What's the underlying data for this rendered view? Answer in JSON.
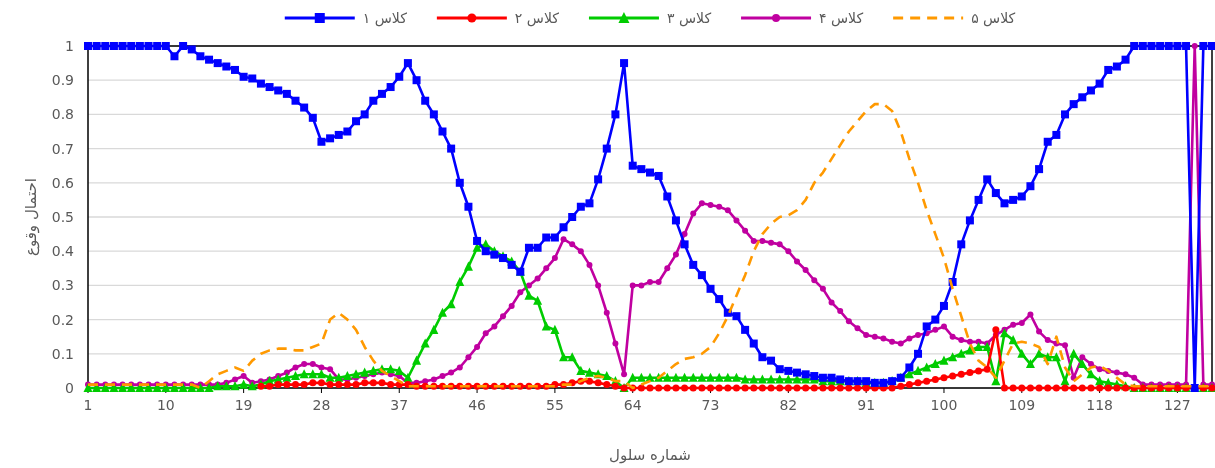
{
  "chart_data": {
    "type": "line",
    "xlabel": "شماره سلول",
    "ylabel": "احتمال وقوع",
    "x": [
      1,
      2,
      3,
      4,
      5,
      6,
      7,
      8,
      9,
      10,
      11,
      12,
      13,
      14,
      15,
      16,
      17,
      18,
      19,
      20,
      21,
      22,
      23,
      24,
      25,
      26,
      27,
      28,
      29,
      30,
      31,
      32,
      33,
      34,
      35,
      36,
      37,
      38,
      39,
      40,
      41,
      42,
      43,
      44,
      45,
      46,
      47,
      48,
      49,
      50,
      51,
      52,
      53,
      54,
      55,
      56,
      57,
      58,
      59,
      60,
      61,
      62,
      63,
      64,
      65,
      66,
      67,
      68,
      69,
      70,
      71,
      72,
      73,
      74,
      75,
      76,
      77,
      78,
      79,
      80,
      81,
      82,
      83,
      84,
      85,
      86,
      87,
      88,
      89,
      90,
      91,
      92,
      93,
      94,
      95,
      96,
      97,
      98,
      99,
      100,
      101,
      102,
      103,
      104,
      105,
      106,
      107,
      108,
      109,
      110,
      111,
      112,
      113,
      114,
      115,
      116,
      117,
      118,
      119,
      120,
      121,
      122,
      123,
      124,
      125,
      126,
      127,
      128,
      129,
      130,
      131
    ],
    "xlim": [
      1,
      131
    ],
    "xticks": [
      1,
      10,
      19,
      28,
      37,
      46,
      55,
      64,
      73,
      82,
      91,
      100,
      109,
      118,
      127
    ],
    "ylim": [
      0,
      1
    ],
    "yticks": [
      0,
      0.1,
      0.2,
      0.3,
      0.4,
      0.5,
      0.6,
      0.7,
      0.8,
      0.9,
      1
    ],
    "grid": "y",
    "legend": "top",
    "series": [
      {
        "name": "کلاس ۱",
        "color": "#0000ff",
        "marker": "square",
        "line_style": "solid",
        "values": [
          1,
          1,
          1,
          1,
          1,
          1,
          1,
          1,
          1,
          1,
          0.97,
          1,
          0.99,
          0.97,
          0.96,
          0.95,
          0.94,
          0.93,
          0.91,
          0.905,
          0.89,
          0.88,
          0.87,
          0.86,
          0.84,
          0.82,
          0.79,
          0.72,
          0.73,
          0.74,
          0.75,
          0.78,
          0.8,
          0.84,
          0.86,
          0.88,
          0.91,
          0.95,
          0.9,
          0.84,
          0.8,
          0.75,
          0.7,
          0.6,
          0.53,
          0.43,
          0.4,
          0.39,
          0.38,
          0.36,
          0.34,
          0.41,
          0.41,
          0.44,
          0.44,
          0.47,
          0.5,
          0.53,
          0.54,
          0.61,
          0.7,
          0.8,
          0.95,
          0.65,
          0.64,
          0.63,
          0.62,
          0.56,
          0.49,
          0.42,
          0.36,
          0.33,
          0.29,
          0.26,
          0.22,
          0.21,
          0.17,
          0.13,
          0.09,
          0.08,
          0.055,
          0.05,
          0.045,
          0.04,
          0.035,
          0.03,
          0.03,
          0.025,
          0.02,
          0.02,
          0.02,
          0.015,
          0.015,
          0.02,
          0.03,
          0.06,
          0.1,
          0.18,
          0.2,
          0.24,
          0.31,
          0.42,
          0.49,
          0.55,
          0.61,
          0.57,
          0.54,
          0.55,
          0.56,
          0.59,
          0.64,
          0.72,
          0.74,
          0.8,
          0.83,
          0.85,
          0.87,
          0.89,
          0.93,
          0.94,
          0.96,
          1,
          1,
          1,
          1,
          1,
          1,
          1,
          0,
          1,
          1
        ]
      },
      {
        "name": "کلاس ۲",
        "color": "#ff0000",
        "marker": "circle",
        "line_style": "solid",
        "values": [
          null,
          null,
          null,
          null,
          null,
          null,
          null,
          null,
          null,
          null,
          null,
          null,
          null,
          null,
          null,
          null,
          null,
          null,
          null,
          null,
          0.005,
          0.005,
          0.01,
          0.01,
          0.01,
          0.01,
          0.015,
          0.015,
          0.01,
          0.01,
          0.01,
          0.01,
          0.015,
          0.015,
          0.015,
          0.01,
          0.01,
          0.01,
          0.005,
          0.005,
          0.005,
          0.005,
          0.005,
          0.005,
          0.005,
          0.005,
          0.005,
          0.005,
          0.005,
          0.005,
          0.005,
          0.005,
          0.005,
          0.005,
          0.01,
          0.01,
          0.015,
          0.02,
          0.02,
          0.015,
          0.01,
          0.005,
          0,
          0,
          0,
          0,
          0,
          0,
          0,
          0,
          0,
          0,
          0,
          0,
          0,
          0,
          0,
          0,
          0,
          0,
          0,
          0,
          0,
          0,
          0,
          0,
          0,
          0,
          0,
          0,
          0,
          0,
          0,
          0,
          0.005,
          0.01,
          0.015,
          0.02,
          0.025,
          0.03,
          0.035,
          0.04,
          0.045,
          0.05,
          0.055,
          0.17,
          0,
          0,
          0,
          0,
          0,
          0,
          0,
          0,
          0,
          0,
          0,
          0,
          0,
          0,
          0,
          0,
          0,
          0,
          0,
          0,
          0,
          0,
          0,
          0,
          0
        ]
      },
      {
        "name": "کلاس ۳",
        "color": "#00cc00",
        "marker": "triangle",
        "line_style": "solid",
        "values": [
          0,
          0,
          0,
          0,
          0,
          0,
          0,
          0,
          0,
          0,
          0,
          0,
          0,
          0,
          0,
          0.005,
          0.005,
          0.005,
          0.01,
          0.005,
          0.01,
          0.02,
          0.025,
          0.03,
          0.035,
          0.04,
          0.04,
          0.04,
          0.03,
          0.03,
          0.035,
          0.04,
          0.045,
          0.05,
          0.055,
          0.055,
          0.05,
          0.03,
          0.08,
          0.13,
          0.17,
          0.22,
          0.245,
          0.31,
          0.355,
          0.41,
          0.42,
          0.4,
          0.385,
          0.37,
          0.34,
          0.27,
          0.255,
          0.18,
          0.17,
          0.09,
          0.09,
          0.05,
          0.045,
          0.04,
          0.035,
          0.02,
          0,
          0.03,
          0.03,
          0.03,
          0.03,
          0.03,
          0.03,
          0.03,
          0.03,
          0.03,
          0.03,
          0.03,
          0.03,
          0.03,
          0.025,
          0.025,
          0.025,
          0.025,
          0.025,
          0.025,
          0.025,
          0.025,
          0.025,
          0.02,
          0.02,
          0.02,
          0.02,
          0.02,
          0.015,
          0.015,
          0.015,
          0.02,
          0.03,
          0.04,
          0.05,
          0.06,
          0.07,
          0.08,
          0.09,
          0.1,
          0.11,
          0.12,
          0.12,
          0.02,
          0.16,
          0.14,
          0.1,
          0.07,
          0.1,
          0.09,
          0.09,
          0.02,
          0.1,
          0.07,
          0.04,
          0.02,
          0.015,
          0.01,
          0.005,
          0,
          0,
          0,
          0,
          0,
          0,
          0,
          0,
          0,
          0
        ]
      },
      {
        "name": "کلاس ۴",
        "color": "#c000a0",
        "marker": "circle",
        "line_style": "solid",
        "values": [
          0.01,
          0.01,
          0.01,
          0.01,
          0.01,
          0.01,
          0.01,
          0.01,
          0.01,
          0.01,
          0.01,
          0.01,
          0.01,
          0.01,
          0.01,
          0.01,
          0.015,
          0.025,
          0.035,
          0.015,
          0.02,
          0.025,
          0.035,
          0.045,
          0.06,
          0.07,
          0.07,
          0.06,
          0.055,
          0.025,
          0.025,
          0.03,
          0.035,
          0.04,
          0.045,
          0.04,
          0.035,
          0.015,
          0.015,
          0.02,
          0.025,
          0.035,
          0.045,
          0.06,
          0.09,
          0.12,
          0.16,
          0.18,
          0.21,
          0.24,
          0.28,
          0.3,
          0.32,
          0.35,
          0.38,
          0.435,
          0.42,
          0.4,
          0.36,
          0.3,
          0.22,
          0.13,
          0.04,
          0.3,
          0.3,
          0.31,
          0.31,
          0.35,
          0.39,
          0.45,
          0.51,
          0.54,
          0.535,
          0.53,
          0.52,
          0.49,
          0.46,
          0.43,
          0.43,
          0.425,
          0.42,
          0.4,
          0.37,
          0.345,
          0.315,
          0.29,
          0.25,
          0.225,
          0.195,
          0.175,
          0.155,
          0.15,
          0.145,
          0.135,
          0.13,
          0.145,
          0.155,
          0.16,
          0.17,
          0.18,
          0.15,
          0.14,
          0.135,
          0.135,
          0.13,
          0.155,
          0.17,
          0.185,
          0.19,
          0.215,
          0.165,
          0.14,
          0.13,
          0.125,
          0.03,
          0.09,
          0.07,
          0.055,
          0.05,
          0.045,
          0.04,
          0.03,
          0.01,
          0.01,
          0.01,
          0.01,
          0.01,
          0.01,
          1,
          0.01,
          0.01
        ]
      },
      {
        "name": "کلاس ۵",
        "color": "#ff9900",
        "marker": "none",
        "line_style": "dashed",
        "values": [
          0.01,
          0.01,
          0.01,
          0.01,
          0.01,
          0.01,
          0.01,
          0.01,
          0.01,
          0.01,
          0.01,
          0.01,
          0.01,
          0,
          0.02,
          0.04,
          0.05,
          0.06,
          0.05,
          0.08,
          0.1,
          0.11,
          0.115,
          0.115,
          0.11,
          0.11,
          0.12,
          0.13,
          0.2,
          0.22,
          0.2,
          0.17,
          0.12,
          0.08,
          0.05,
          0.035,
          0.02,
          0.005,
          0.005,
          0.005,
          0.005,
          0.005,
          0.005,
          0.005,
          0.005,
          0.005,
          0.005,
          0.005,
          0.005,
          0.005,
          0.005,
          0.005,
          0.005,
          0.005,
          0.005,
          0.01,
          0.01,
          0.02,
          0.03,
          0.035,
          0.03,
          0.02,
          0.02,
          0,
          0.01,
          0.02,
          0.03,
          0.05,
          0.07,
          0.085,
          0.09,
          0.1,
          0.12,
          0.16,
          0.21,
          0.27,
          0.33,
          0.4,
          0.45,
          0.48,
          0.5,
          0.505,
          0.52,
          0.55,
          0.6,
          0.63,
          0.67,
          0.71,
          0.75,
          0.78,
          0.81,
          0.83,
          0.83,
          0.81,
          0.75,
          0.67,
          0.6,
          0.52,
          0.45,
          0.38,
          0.29,
          0.21,
          0.13,
          0.08,
          0.06,
          0.03,
          0.08,
          0.13,
          0.135,
          0.13,
          0.12,
          0.07,
          0.15,
          0.06,
          0.02,
          0.04,
          0.06,
          0.065,
          0.05,
          0.03,
          0.01,
          0.005,
          0.005,
          0.005,
          0.005,
          0.005,
          0.005,
          0.005,
          0.005,
          0.005,
          0.005
        ]
      }
    ]
  }
}
